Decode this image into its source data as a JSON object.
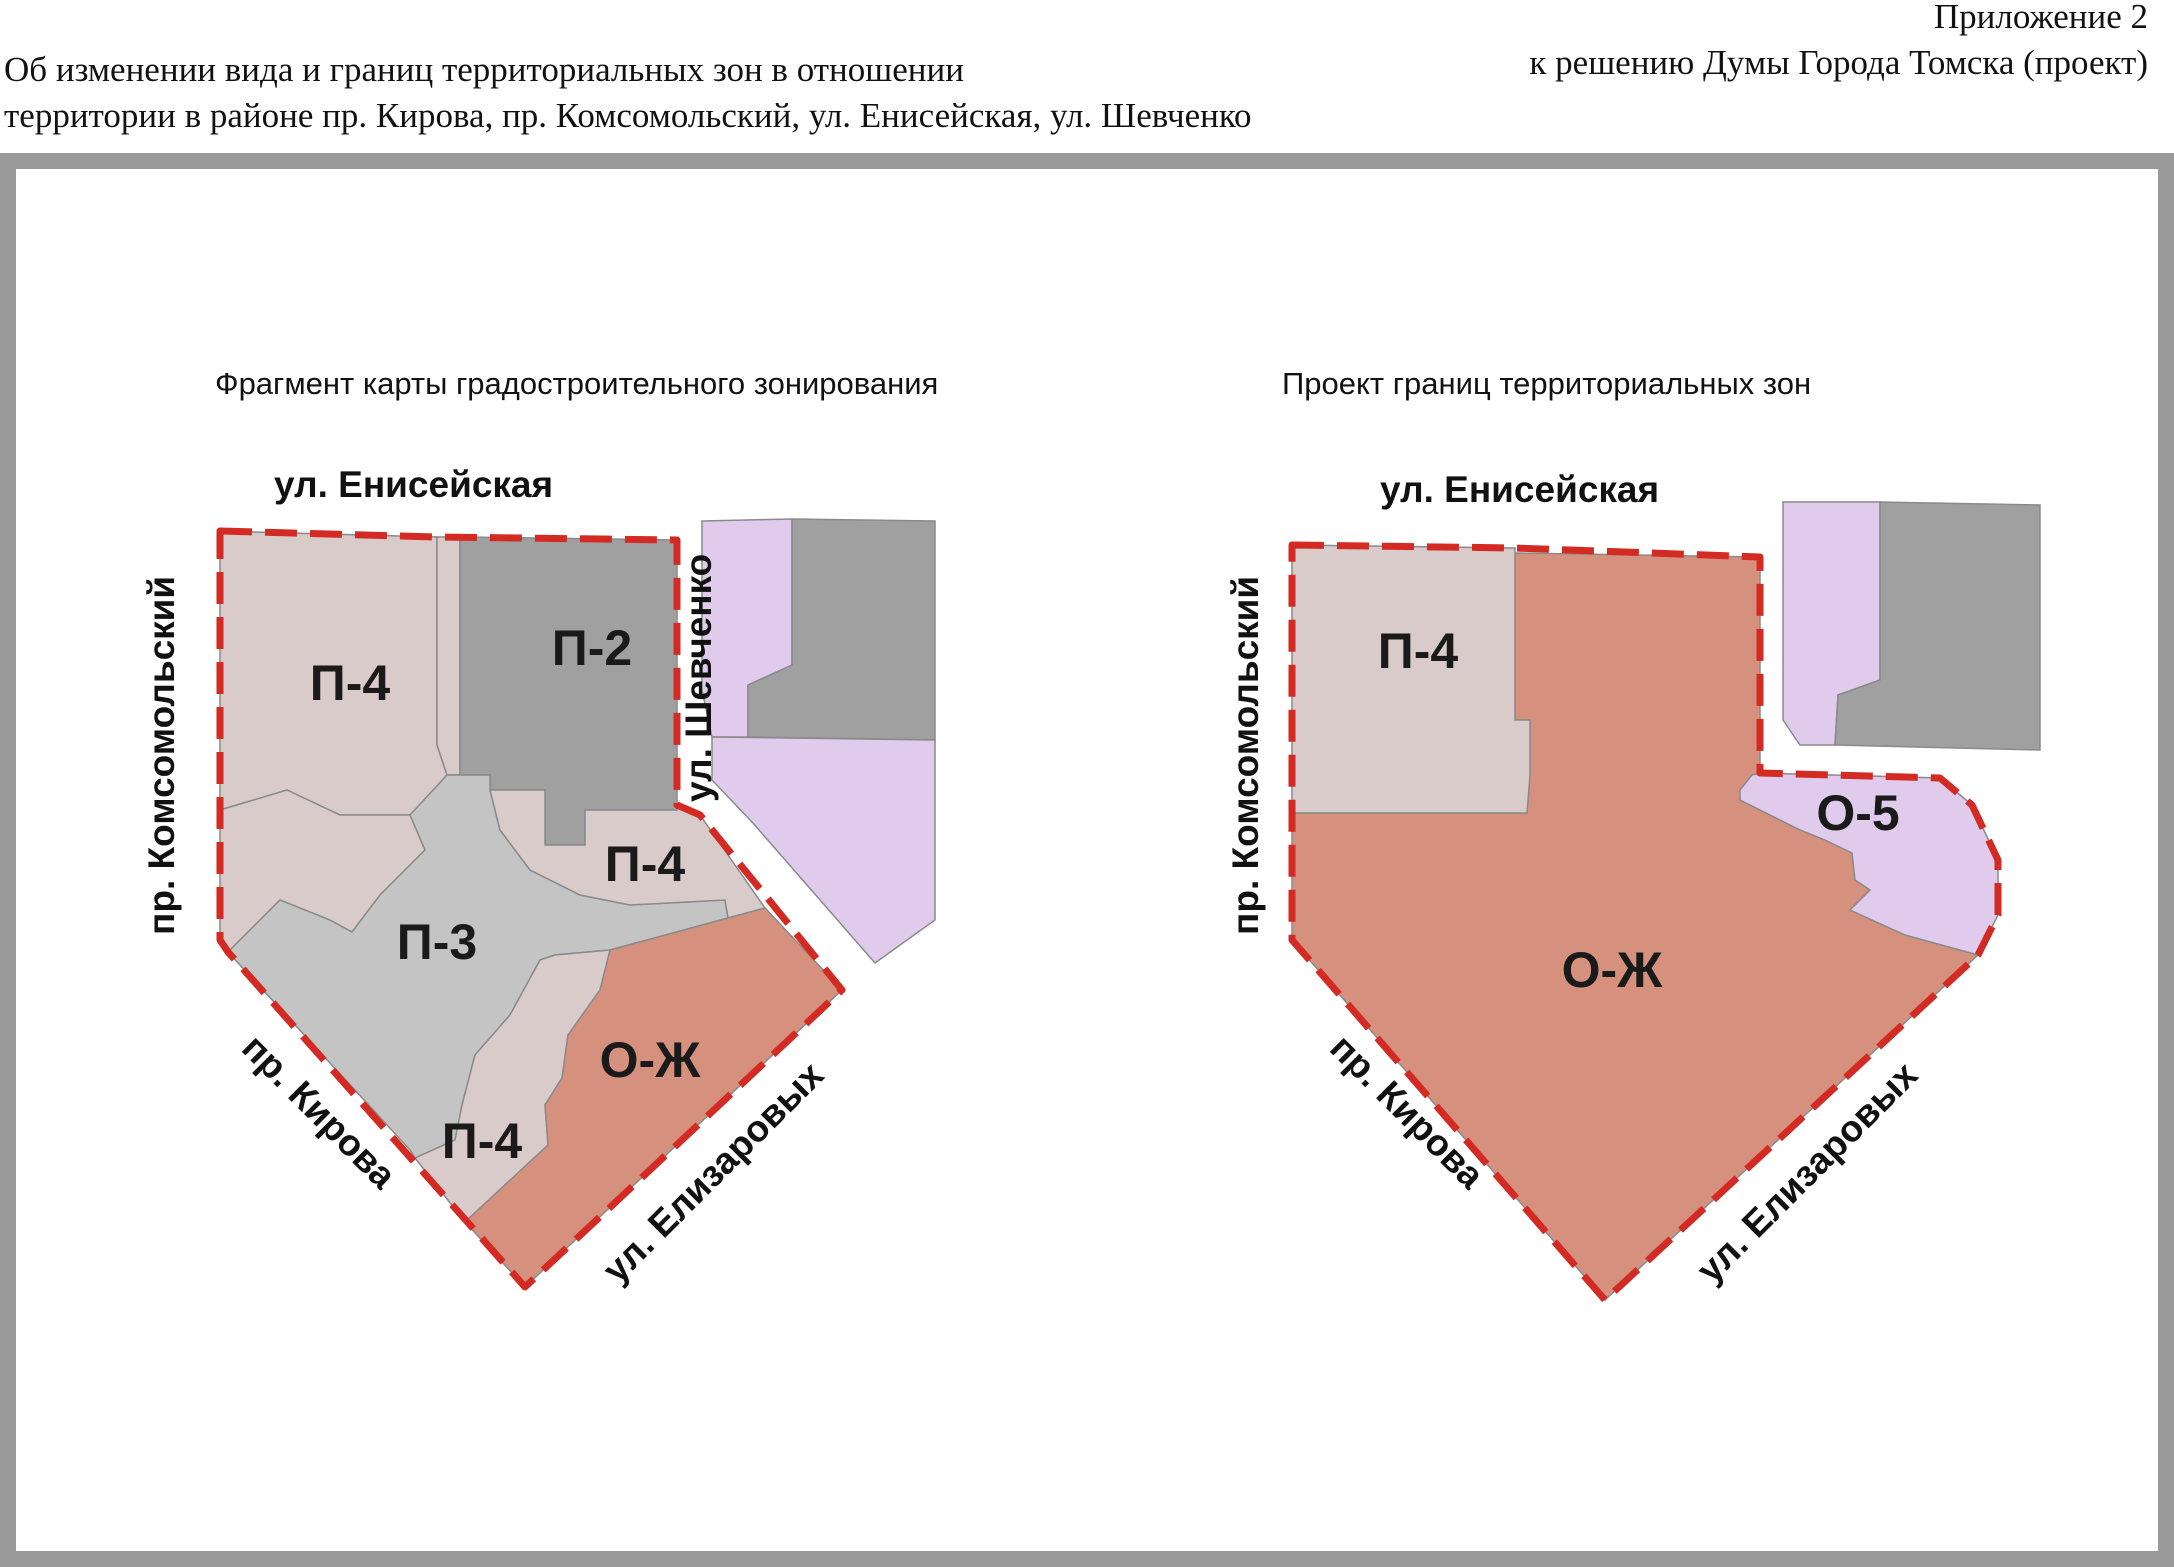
{
  "header": {
    "appendix_line1": "Приложение 2",
    "appendix_line2": "к решению Думы Города Томска (проект)",
    "title_line1": "Об изменении вида и границ территориальных зон в отношении",
    "title_line2": "территории в районе пр. Кирова, пр. Комсомольский, ул. Енисейская, ул. Шевченко"
  },
  "colors": {
    "P4": "#d8cbca",
    "P2": "#a0a0a0",
    "P3": "#c4c4c4",
    "OZh": "#d6917e",
    "O5": "#e0cbec",
    "boundary": "#d42a24",
    "frame": "#9a9a9a"
  },
  "left_map": {
    "subtitle": "Фрагмент карты градостроительного зонирования",
    "streets": {
      "north": "ул. Енисейская",
      "west": "пр. Комсомольский",
      "east": "ул. Шевченко",
      "southwest": "пр. Кирова",
      "southeast": "ул. Елизаровых"
    },
    "zones": {
      "p4_north": "П-4",
      "p2": "П-2",
      "p4_middle": "П-4",
      "p3": "П-3",
      "ozh": "О-Ж",
      "p4_south": "П-4"
    }
  },
  "right_map": {
    "subtitle": "Проект границ территориальных зон",
    "streets": {
      "north": "ул. Енисейская",
      "west": "пр. Комсомольский",
      "southwest": "пр. Кирова",
      "southeast": "ул. Елизаровых"
    },
    "zones": {
      "p4": "П-4",
      "o5": "О-5",
      "ozh": "О-Ж"
    }
  }
}
